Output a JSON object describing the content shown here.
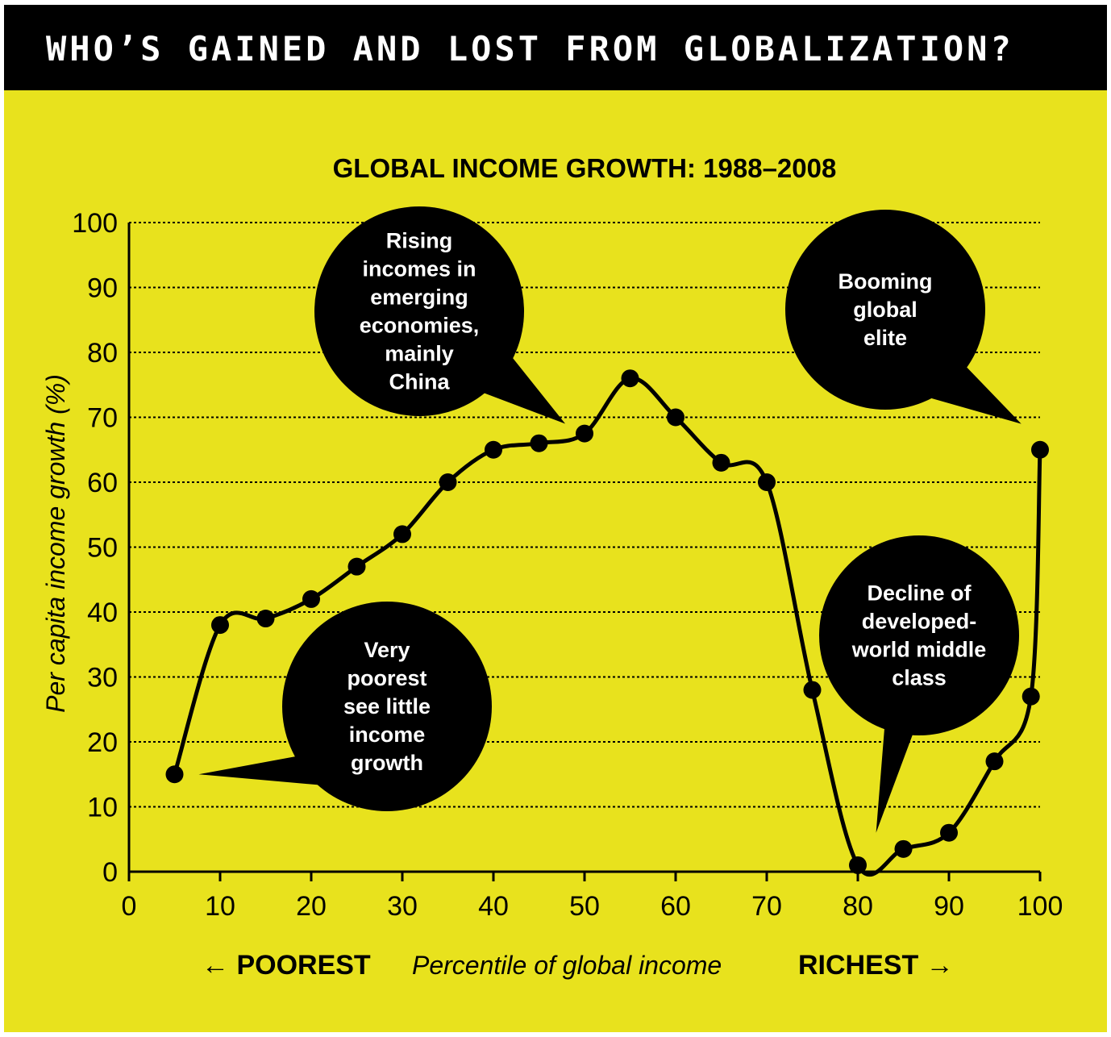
{
  "banner": {
    "title": "WHO’S GAINED AND LOST FROM GLOBALIZATION?"
  },
  "colors": {
    "background": "#e8e21d",
    "header": "#000000",
    "ink": "#000000",
    "bubble_text": "#ffffff"
  },
  "chart_data": {
    "type": "line",
    "title": "GLOBAL INCOME GROWTH: 1988–2008",
    "xlabel": "Percentile of global income",
    "xlabel_left": "← POOREST",
    "xlabel_right": "RICHEST →",
    "ylabel": "Per capita income growth (%)",
    "xlim": [
      0,
      100
    ],
    "ylim": [
      0,
      100
    ],
    "x_ticks": [
      "0",
      "10",
      "20",
      "30",
      "40",
      "50",
      "60",
      "70",
      "80",
      "90",
      "100"
    ],
    "y_ticks": [
      "0",
      "10",
      "20",
      "30",
      "40",
      "50",
      "60",
      "70",
      "80",
      "90",
      "100"
    ],
    "grid": "horizontal dashed",
    "x": [
      5,
      10,
      15,
      20,
      25,
      30,
      35,
      40,
      45,
      50,
      55,
      60,
      65,
      70,
      75,
      80,
      85,
      90,
      95,
      99,
      100
    ],
    "y": [
      15,
      38,
      39,
      42,
      47,
      52,
      60,
      65,
      66,
      67.5,
      76,
      70,
      63,
      60,
      28,
      1,
      3.5,
      6,
      17,
      27,
      65
    ],
    "annotations": [
      {
        "text": [
          "Very",
          "poorest",
          "see little",
          "income",
          "growth"
        ],
        "points_to": [
          5,
          15
        ]
      },
      {
        "text": [
          "Rising",
          "incomes in",
          "emerging",
          "economies,",
          "mainly",
          "China"
        ],
        "points_to": [
          47,
          69
        ]
      },
      {
        "text": [
          "Booming",
          "global",
          "elite"
        ],
        "points_to": [
          99,
          68
        ]
      },
      {
        "text": [
          "Decline of",
          "developed-",
          "world middle",
          "class"
        ],
        "points_to": [
          82,
          6
        ]
      }
    ]
  }
}
